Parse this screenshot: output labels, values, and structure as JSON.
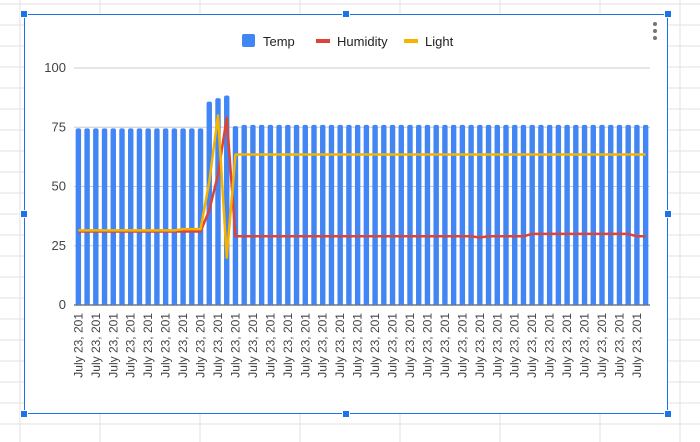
{
  "chart_data": {
    "type": "bar",
    "legend": "top",
    "grid": true,
    "title": "",
    "xlabel": "",
    "ylabel": "",
    "ylim": [
      0,
      100
    ],
    "yticks": [
      0,
      25,
      50,
      75,
      100
    ],
    "category_label": "July 23, 201",
    "category_count": 66,
    "series": [
      {
        "name": "Temp",
        "type": "bar",
        "color": "#4285f4",
        "values": [
          74.5,
          74.5,
          74.5,
          74.5,
          74.5,
          74.5,
          74.5,
          74.5,
          74.5,
          74.5,
          74.5,
          74.5,
          74.5,
          74.5,
          74.5,
          85.8,
          87.3,
          88.4,
          75.5,
          76,
          76,
          76,
          76,
          76,
          76,
          76,
          76,
          76,
          76,
          76,
          76,
          76,
          76,
          76,
          76,
          76,
          76,
          76,
          76,
          76,
          76,
          76,
          76,
          76,
          76,
          76,
          76,
          76,
          76,
          76,
          76,
          76,
          76,
          76,
          76,
          76,
          76,
          76,
          76,
          76,
          76,
          76,
          76,
          76,
          76,
          76
        ]
      },
      {
        "name": "Humidity",
        "type": "line",
        "color": "#db4437",
        "values": [
          31,
          31,
          31,
          31,
          31,
          31,
          31,
          31,
          31,
          31,
          31,
          31,
          31,
          31,
          31,
          40,
          55,
          79,
          29,
          29,
          29,
          29,
          29,
          29,
          29,
          29,
          29,
          29,
          29,
          29,
          29,
          29,
          29,
          29,
          29,
          29,
          29,
          29,
          29,
          29,
          29,
          29,
          29,
          29,
          29,
          29,
          28.5,
          29,
          29,
          29,
          29,
          29,
          30,
          30,
          30,
          30,
          30,
          30,
          30,
          30,
          30,
          30,
          30,
          30,
          29,
          29
        ]
      },
      {
        "name": "Light",
        "type": "line",
        "color": "#f4b400",
        "values": [
          31.5,
          31.5,
          31.5,
          31.5,
          31.5,
          31.5,
          31.5,
          31.5,
          31.5,
          31.5,
          31.5,
          31.5,
          32,
          32,
          32,
          52,
          80,
          20,
          63.5,
          63.5,
          63.5,
          63.5,
          63.5,
          63.5,
          63.5,
          63.5,
          63.5,
          63.5,
          63.5,
          63.5,
          63.5,
          63.5,
          63.5,
          63.5,
          63.5,
          63.5,
          63.5,
          63.5,
          63.5,
          63.5,
          63.5,
          63.5,
          63.5,
          63.5,
          63.5,
          63.5,
          63.5,
          63.5,
          63.5,
          63.5,
          63.5,
          63.5,
          63.5,
          63.5,
          63.5,
          63.5,
          63.5,
          63.5,
          63.5,
          63.5,
          63.5,
          63.5,
          63.5,
          63.5,
          63.5,
          63.5
        ]
      }
    ]
  }
}
